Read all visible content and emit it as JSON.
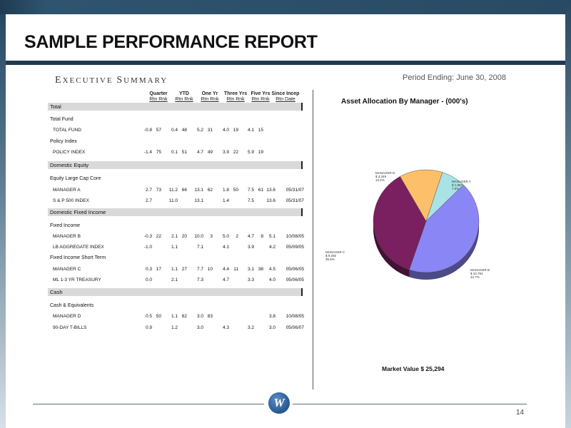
{
  "title": "SAMPLE PERFORMANCE REPORT",
  "executive_summary": {
    "first": "E",
    "rest": "XECUTIVE ",
    "first2": "S",
    "rest2": "UMMARY"
  },
  "period_ending": "Period Ending:  June 30, 2008",
  "columns": [
    {
      "top": "Quarter",
      "sub": "Rtn  Rnk"
    },
    {
      "top": "YTD",
      "sub": "Rtn  Rnk"
    },
    {
      "top": "One Yr",
      "sub": "Rtn  Rnk"
    },
    {
      "top": "Three Yrs",
      "sub": "Rtn  Rnk"
    },
    {
      "top": "Five Yrs",
      "sub": "Rtn  Rnk"
    },
    {
      "top": "Since Incep",
      "sub": "Rtn      Date"
    }
  ],
  "sections": {
    "total": "Total",
    "domestic_equity": "Domestic Equity",
    "domestic_fixed": "Domestic Fixed Income",
    "cash": "Cash"
  },
  "groups": {
    "total_fund": "Total Fund",
    "policy_index": "Policy Index",
    "equity_large_cap": "Equity Large Cap Core",
    "fixed_income": "Fixed Income",
    "fixed_short": "Fixed Income Short Term",
    "cash_eq": "Cash & Equivalents"
  },
  "rows": {
    "total_fund": {
      "label": "TOTAL FUND",
      "vals": [
        "-0.8",
        "57",
        "0.4",
        "48",
        "5.2",
        "31",
        "4.0",
        "19",
        "4.1",
        "15",
        "",
        ""
      ]
    },
    "policy_index": {
      "label": "POLICY INDEX",
      "vals": [
        "-1.4",
        "75",
        "0.1",
        "51",
        "4.7",
        "49",
        "3.9",
        "22",
        "5.9",
        "19",
        "",
        ""
      ]
    },
    "manager_a": {
      "label": "MANAGER A",
      "vals": [
        "2.7",
        "73",
        "11.2",
        "66",
        "13.1",
        "62",
        "1.8",
        "50",
        "7.5",
        "61",
        "13.6",
        "05/31/07"
      ]
    },
    "sp500": {
      "label": "S & P 500 INDEX",
      "vals": [
        "2.7",
        "",
        "11.0",
        "",
        "13.1",
        "",
        "1.4",
        "",
        "7.5",
        "",
        "13.6",
        "05/31/07"
      ]
    },
    "manager_b": {
      "label": "MANAGER B",
      "vals": [
        "-0.3",
        "22",
        "2.1",
        "20",
        "10.0",
        "3",
        "5.0",
        "2",
        "4.7",
        "8",
        "5.1",
        "10/08/05"
      ]
    },
    "lb_agg": {
      "label": "LB AGGREGATE INDEX",
      "vals": [
        "-1.0",
        "",
        "1.1",
        "",
        "7.1",
        "",
        "4.1",
        "",
        "3.9",
        "",
        "4.2",
        "05/09/05"
      ]
    },
    "manager_c": {
      "label": "MANAGER C",
      "vals": [
        "0.3",
        "17",
        "1.1",
        "27",
        "7.7",
        "10",
        "4.4",
        "11",
        "3.1",
        "38",
        "4.5",
        "05/06/05"
      ]
    },
    "ml_treasury": {
      "label": "ML 1-3 YR TREASURY",
      "vals": [
        "0.0",
        "",
        "2.1",
        "",
        "7.3",
        "",
        "4.7",
        "",
        "3.3",
        "",
        "4.0",
        "05/06/05"
      ]
    },
    "manager_d": {
      "label": "MANAGER D",
      "vals": [
        "0.5",
        "50",
        "1.1",
        "82",
        "3.0",
        "83",
        "",
        "",
        "",
        "",
        "3.8",
        "10/08/05"
      ]
    },
    "tbills": {
      "label": "90-DAY T-BILLS",
      "vals": [
        "0.9",
        "",
        "1.2",
        "",
        "3.0",
        "",
        "4.3",
        "",
        "3.2",
        "",
        "3.0",
        "05/06/07"
      ]
    }
  },
  "chart_data": {
    "type": "pie",
    "title": "Asset Allocation By Manager - (000's)",
    "slices": [
      {
        "label": "MANAGER A",
        "value_text": "$ 1,887",
        "percent_text": "7.5%",
        "percent": 7.5,
        "color": "#a9e3e5"
      },
      {
        "label": "MANAGER B",
        "value_text": "$ 10,791",
        "percent_text": "42.7%",
        "percent": 42.7,
        "color": "#8a86f5"
      },
      {
        "label": "MANAGER C",
        "value_text": "$ 9,265",
        "percent_text": "36.6%",
        "percent": 36.6,
        "color": "#7a1f5f"
      },
      {
        "label": "MANAGER D",
        "value_text": "$ 3,349",
        "percent_text": "13.2%",
        "percent": 13.2,
        "color": "#fdbf6a"
      }
    ],
    "market_value": "Market Value $ 25,294"
  },
  "logo_letter": "W",
  "page_number": "14"
}
